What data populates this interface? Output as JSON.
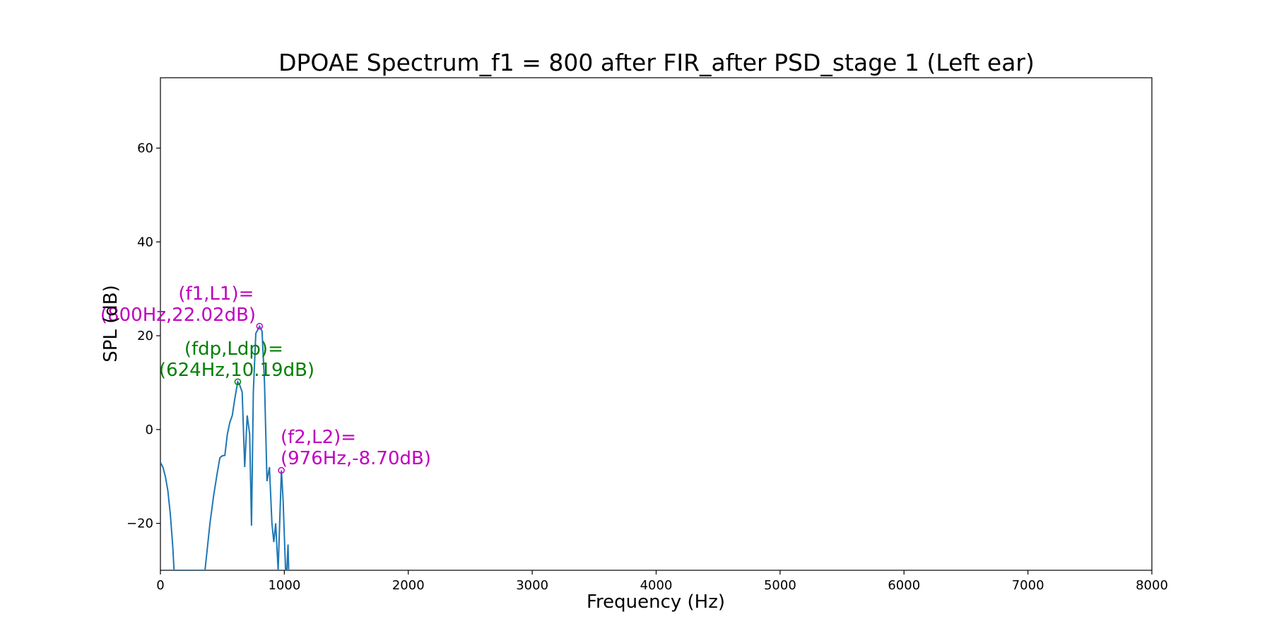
{
  "chart_data": {
    "type": "line",
    "title": "DPOAE Spectrum_f1 = 800 after FIR_after PSD_stage 1 (Left ear)",
    "xlabel": "Frequency (Hz)",
    "ylabel": "SPL (dB)",
    "xlim": [
      0,
      8000
    ],
    "ylim": [
      -30,
      75
    ],
    "x_ticks": [
      0,
      1000,
      2000,
      3000,
      4000,
      5000,
      6000,
      7000,
      8000
    ],
    "x_tick_labels": [
      "0",
      "1000",
      "2000",
      "3000",
      "4000",
      "5000",
      "6000",
      "7000",
      "8000"
    ],
    "y_ticks": [
      -20,
      0,
      20,
      40,
      60
    ],
    "y_tick_labels": [
      "−20",
      "0",
      "20",
      "40",
      "60"
    ],
    "grid": false,
    "series": [
      {
        "color": "#1f77b4",
        "points": [
          [
            0,
            -7
          ],
          [
            20,
            -8
          ],
          [
            40,
            -10
          ],
          [
            60,
            -13
          ],
          [
            80,
            -18
          ],
          [
            100,
            -25
          ],
          [
            110,
            -30
          ],
          [
            360,
            -30
          ],
          [
            380,
            -25
          ],
          [
            400,
            -20
          ],
          [
            430,
            -14
          ],
          [
            460,
            -9
          ],
          [
            480,
            -6
          ],
          [
            500,
            -5.6
          ],
          [
            520,
            -5.5
          ],
          [
            540,
            -1
          ],
          [
            560,
            1.5
          ],
          [
            580,
            3
          ],
          [
            600,
            6.5
          ],
          [
            624,
            10.19
          ],
          [
            640,
            9.5
          ],
          [
            660,
            8
          ],
          [
            680,
            -8
          ],
          [
            700,
            3
          ],
          [
            720,
            -1
          ],
          [
            735,
            -20.5
          ],
          [
            750,
            8
          ],
          [
            770,
            20.5
          ],
          [
            800,
            22.02
          ],
          [
            820,
            21
          ],
          [
            840,
            10
          ],
          [
            860,
            -11
          ],
          [
            880,
            -8
          ],
          [
            900,
            -20
          ],
          [
            915,
            -24
          ],
          [
            930,
            -20
          ],
          [
            950,
            -30
          ],
          [
            976,
            -8.7
          ],
          [
            990,
            -15
          ],
          [
            1010,
            -30
          ],
          [
            1020,
            -30
          ],
          [
            1030,
            -24.5
          ],
          [
            1035,
            -30
          ]
        ]
      }
    ],
    "markers": [
      {
        "x": 800,
        "y": 22.02,
        "color": "#bf00bf"
      },
      {
        "x": 624,
        "y": 10.19,
        "color": "#008000"
      },
      {
        "x": 976,
        "y": -8.7,
        "color": "#bf00bf"
      }
    ],
    "annotations": [
      {
        "line1": "(f1,L1)=",
        "line2": "(800Hz,22.02dB)",
        "color": "#bf00bf"
      },
      {
        "line1": "(fdp,Ldp)=",
        "line2": "(624Hz,10.19dB)",
        "color": "#008000"
      },
      {
        "line1": "(f2,L2)=",
        "line2": "(976Hz,-8.70dB)",
        "color": "#bf00bf"
      }
    ]
  }
}
